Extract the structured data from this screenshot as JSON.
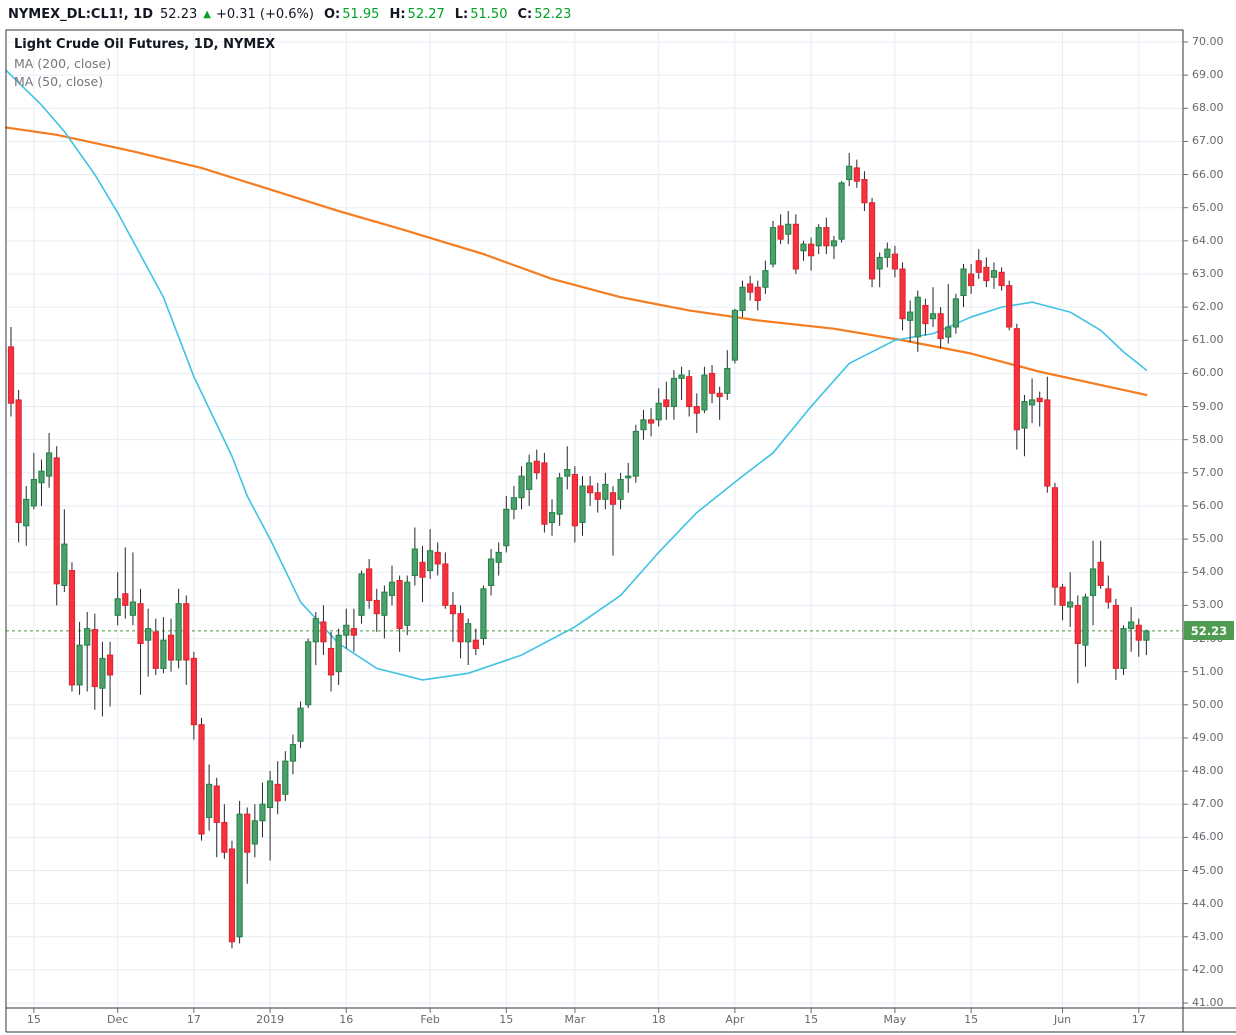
{
  "header": {
    "symbol_text": "NYMEX_DL:CL1!, 1D",
    "last_price": "52.23",
    "direction_icon": "up-triangle",
    "change_text": "+0.31 (+0.6%)",
    "open_label": "O:",
    "open": "51.95",
    "high_label": "H:",
    "high": "52.27",
    "low_label": "L:",
    "low": "51.50",
    "close_label": "C:",
    "close": "52.23"
  },
  "legend": {
    "title": "Light Crude Oil Futures, 1D, NYMEX",
    "ma200_label": "MA (200, close)",
    "ma50_label": "MA (50, close)"
  },
  "colors": {
    "up_fill": "#4f9e6d",
    "up_stroke": "#1f8243",
    "down_fill": "#f5323e",
    "down_stroke": "#dc2230",
    "wick": "#23262c",
    "ma200": "#f57c20",
    "ma50": "#40c2e5",
    "grid": "#e6edf4",
    "frame": "#33363d",
    "axis_text": "#66696f",
    "price_line": "#4e9b3d",
    "badge_bg": "#509b52",
    "badge_text": "#ffffff",
    "value_green": "#00a028"
  },
  "chart_data": {
    "type": "candlestick",
    "title": "Light Crude Oil Futures, 1D, NYMEX",
    "ylim": [
      41,
      70
    ],
    "y_min": 41,
    "y_max": 70,
    "y_step": 1,
    "grid": true,
    "price_line": 52.23,
    "price_label": "52.23",
    "x_labels": [
      [
        3,
        "15"
      ],
      [
        14,
        "Dec"
      ],
      [
        24,
        "17"
      ],
      [
        34,
        "2019"
      ],
      [
        44,
        "16"
      ],
      [
        55,
        "Feb"
      ],
      [
        65,
        "15"
      ],
      [
        74,
        "Mar"
      ],
      [
        85,
        "18"
      ],
      [
        95,
        "Apr"
      ],
      [
        105,
        "15"
      ],
      [
        116,
        "May"
      ],
      [
        126,
        "15"
      ],
      [
        138,
        "Jun"
      ],
      [
        148,
        "17"
      ]
    ],
    "candles": [
      [
        60.8,
        61.4,
        58.7,
        59.1
      ],
      [
        59.2,
        59.5,
        54.9,
        55.5
      ],
      [
        55.4,
        56.6,
        54.8,
        56.2
      ],
      [
        56.0,
        57.6,
        55.9,
        56.8
      ],
      [
        56.7,
        57.4,
        56.0,
        57.05
      ],
      [
        56.9,
        58.2,
        56.55,
        57.6
      ],
      [
        57.45,
        57.8,
        53.0,
        53.65
      ],
      [
        53.6,
        55.9,
        53.4,
        54.85
      ],
      [
        54.05,
        54.3,
        50.4,
        50.6
      ],
      [
        50.6,
        52.5,
        50.3,
        51.8
      ],
      [
        51.8,
        52.8,
        50.4,
        52.3
      ],
      [
        52.27,
        52.75,
        49.85,
        50.55
      ],
      [
        50.5,
        51.9,
        49.65,
        51.4
      ],
      [
        51.5,
        51.9,
        49.95,
        50.9
      ],
      [
        52.7,
        54.0,
        52.4,
        53.2
      ],
      [
        53.35,
        54.75,
        52.6,
        53.0
      ],
      [
        52.7,
        54.6,
        52.4,
        53.1
      ],
      [
        53.05,
        53.5,
        50.3,
        51.85
      ],
      [
        51.95,
        52.9,
        50.85,
        52.3
      ],
      [
        52.2,
        52.6,
        50.9,
        51.1
      ],
      [
        51.1,
        52.65,
        50.95,
        51.95
      ],
      [
        52.1,
        52.6,
        51.0,
        51.35
      ],
      [
        51.35,
        53.5,
        51.1,
        53.05
      ],
      [
        53.05,
        53.3,
        50.6,
        51.35
      ],
      [
        51.4,
        51.6,
        48.95,
        49.4
      ],
      [
        49.4,
        49.6,
        45.9,
        46.1
      ],
      [
        46.6,
        48.2,
        46.2,
        47.6
      ],
      [
        47.55,
        47.8,
        45.4,
        46.45
      ],
      [
        46.45,
        47.0,
        45.35,
        45.55
      ],
      [
        45.65,
        45.9,
        42.65,
        42.85
      ],
      [
        43.0,
        47.1,
        42.8,
        46.7
      ],
      [
        46.7,
        46.9,
        44.6,
        45.55
      ],
      [
        45.8,
        47.0,
        45.4,
        46.5
      ],
      [
        46.5,
        47.65,
        46.0,
        47.0
      ],
      [
        46.9,
        48.0,
        45.3,
        47.7
      ],
      [
        47.6,
        48.3,
        46.7,
        47.1
      ],
      [
        47.3,
        48.6,
        47.1,
        48.3
      ],
      [
        48.3,
        49.1,
        47.9,
        48.8
      ],
      [
        48.9,
        50.1,
        48.7,
        49.9
      ],
      [
        50.0,
        52.0,
        49.9,
        51.9
      ],
      [
        51.9,
        52.8,
        51.2,
        52.6
      ],
      [
        52.5,
        53.0,
        51.5,
        51.9
      ],
      [
        51.7,
        52.2,
        50.4,
        50.9
      ],
      [
        51.0,
        52.3,
        50.6,
        52.1
      ],
      [
        52.1,
        52.9,
        51.7,
        52.4
      ],
      [
        52.3,
        52.9,
        51.6,
        52.1
      ],
      [
        52.7,
        54.05,
        52.45,
        53.95
      ],
      [
        54.1,
        54.4,
        52.9,
        53.15
      ],
      [
        53.15,
        53.5,
        52.2,
        52.75
      ],
      [
        52.7,
        53.6,
        52.0,
        53.4
      ],
      [
        53.3,
        54.2,
        53.0,
        53.7
      ],
      [
        53.75,
        53.9,
        51.6,
        52.3
      ],
      [
        52.4,
        53.9,
        52.1,
        53.7
      ],
      [
        53.9,
        55.35,
        53.6,
        54.7
      ],
      [
        54.3,
        54.8,
        53.1,
        53.85
      ],
      [
        54.05,
        55.3,
        53.8,
        54.65
      ],
      [
        54.6,
        54.9,
        53.9,
        54.25
      ],
      [
        54.25,
        54.6,
        52.9,
        53.0
      ],
      [
        53.0,
        53.4,
        51.9,
        52.75
      ],
      [
        52.75,
        53.0,
        51.4,
        51.9
      ],
      [
        51.9,
        52.6,
        51.2,
        52.45
      ],
      [
        51.95,
        52.3,
        51.5,
        51.7
      ],
      [
        52.0,
        53.6,
        51.8,
        53.5
      ],
      [
        53.6,
        54.7,
        53.3,
        54.4
      ],
      [
        54.3,
        54.9,
        53.9,
        54.6
      ],
      [
        54.8,
        56.3,
        54.6,
        55.9
      ],
      [
        55.9,
        56.6,
        55.6,
        56.25
      ],
      [
        56.25,
        57.2,
        55.9,
        56.9
      ],
      [
        56.5,
        57.55,
        56.0,
        57.3
      ],
      [
        57.35,
        57.7,
        56.8,
        57.0
      ],
      [
        57.3,
        57.6,
        55.2,
        55.45
      ],
      [
        55.5,
        56.2,
        55.1,
        55.8
      ],
      [
        55.75,
        57.0,
        55.4,
        56.85
      ],
      [
        56.9,
        57.8,
        56.5,
        57.1
      ],
      [
        56.95,
        57.2,
        54.9,
        55.4
      ],
      [
        55.5,
        56.9,
        55.1,
        56.6
      ],
      [
        56.6,
        56.9,
        56.0,
        56.4
      ],
      [
        56.4,
        56.7,
        55.8,
        56.2
      ],
      [
        56.2,
        57.0,
        55.9,
        56.65
      ],
      [
        56.4,
        56.6,
        54.5,
        56.05
      ],
      [
        56.2,
        57.0,
        55.9,
        56.8
      ],
      [
        56.85,
        57.3,
        56.4,
        56.9
      ],
      [
        56.9,
        58.45,
        56.7,
        58.25
      ],
      [
        58.3,
        58.9,
        58.0,
        58.6
      ],
      [
        58.6,
        58.95,
        58.1,
        58.5
      ],
      [
        58.6,
        59.55,
        58.4,
        59.1
      ],
      [
        59.2,
        59.75,
        58.6,
        59.0
      ],
      [
        59.0,
        60.1,
        58.6,
        59.85
      ],
      [
        59.85,
        60.2,
        59.2,
        59.95
      ],
      [
        59.9,
        60.1,
        58.7,
        59.0
      ],
      [
        59.0,
        59.4,
        58.2,
        58.8
      ],
      [
        58.9,
        60.2,
        58.8,
        59.95
      ],
      [
        60.0,
        60.25,
        59.1,
        59.4
      ],
      [
        59.4,
        59.6,
        58.6,
        59.3
      ],
      [
        59.4,
        60.7,
        59.2,
        60.15
      ],
      [
        60.4,
        61.95,
        60.3,
        61.9
      ],
      [
        61.9,
        62.8,
        61.7,
        62.6
      ],
      [
        62.7,
        62.95,
        62.2,
        62.45
      ],
      [
        62.6,
        62.8,
        61.9,
        62.2
      ],
      [
        62.6,
        63.4,
        62.4,
        63.1
      ],
      [
        63.3,
        64.6,
        63.2,
        64.4
      ],
      [
        64.45,
        64.8,
        63.9,
        64.05
      ],
      [
        64.2,
        64.9,
        63.9,
        64.5
      ],
      [
        64.5,
        64.8,
        63.0,
        63.15
      ],
      [
        63.7,
        64.0,
        63.4,
        63.9
      ],
      [
        63.9,
        64.1,
        63.1,
        63.55
      ],
      [
        63.85,
        64.5,
        63.6,
        64.4
      ],
      [
        64.4,
        64.7,
        63.6,
        63.85
      ],
      [
        63.85,
        64.15,
        63.45,
        64.0
      ],
      [
        64.05,
        65.8,
        63.95,
        65.75
      ],
      [
        65.85,
        66.65,
        65.65,
        66.25
      ],
      [
        66.2,
        66.45,
        65.6,
        65.8
      ],
      [
        65.85,
        66.1,
        64.9,
        65.15
      ],
      [
        65.15,
        65.3,
        62.6,
        62.85
      ],
      [
        63.15,
        63.65,
        62.6,
        63.5
      ],
      [
        63.5,
        63.95,
        63.2,
        63.75
      ],
      [
        63.6,
        63.85,
        62.9,
        63.15
      ],
      [
        63.15,
        63.35,
        61.3,
        61.65
      ],
      [
        61.6,
        62.2,
        60.95,
        61.85
      ],
      [
        61.1,
        62.5,
        60.65,
        62.3
      ],
      [
        62.05,
        62.25,
        61.15,
        61.5
      ],
      [
        61.65,
        62.6,
        61.4,
        61.8
      ],
      [
        61.8,
        62.0,
        60.75,
        61.05
      ],
      [
        61.1,
        62.7,
        60.9,
        61.4
      ],
      [
        61.4,
        62.4,
        61.2,
        62.25
      ],
      [
        62.35,
        63.3,
        62.0,
        63.15
      ],
      [
        63.0,
        63.3,
        62.4,
        62.65
      ],
      [
        63.4,
        63.75,
        62.85,
        63.05
      ],
      [
        63.2,
        63.5,
        62.6,
        62.8
      ],
      [
        62.9,
        63.35,
        62.55,
        63.1
      ],
      [
        63.05,
        63.2,
        62.5,
        62.65
      ],
      [
        62.65,
        62.8,
        61.3,
        61.4
      ],
      [
        61.35,
        61.5,
        57.7,
        58.3
      ],
      [
        58.35,
        59.35,
        57.5,
        59.15
      ],
      [
        59.05,
        59.85,
        58.5,
        59.2
      ],
      [
        59.25,
        59.45,
        58.4,
        59.15
      ],
      [
        59.2,
        59.9,
        56.4,
        56.6
      ],
      [
        56.55,
        56.7,
        53.0,
        53.55
      ],
      [
        53.55,
        53.65,
        52.55,
        53.0
      ],
      [
        52.95,
        54.0,
        52.35,
        53.1
      ],
      [
        53.0,
        53.3,
        50.65,
        51.85
      ],
      [
        51.8,
        53.35,
        51.15,
        53.25
      ],
      [
        53.3,
        54.95,
        52.4,
        54.1
      ],
      [
        54.3,
        54.95,
        53.5,
        53.6
      ],
      [
        53.5,
        53.9,
        52.9,
        53.1
      ],
      [
        53.0,
        53.2,
        50.75,
        51.1
      ],
      [
        51.1,
        52.4,
        50.9,
        52.3
      ],
      [
        52.3,
        52.95,
        51.6,
        52.5
      ],
      [
        52.4,
        52.6,
        51.45,
        51.95
      ],
      [
        51.95,
        52.27,
        51.5,
        52.23
      ]
    ],
    "ma200": [
      [
        -0.65,
        67.42
      ],
      [
        0,
        67.4
      ],
      [
        6,
        67.2
      ],
      [
        16,
        66.7
      ],
      [
        25,
        66.2
      ],
      [
        34,
        65.55
      ],
      [
        43,
        64.9
      ],
      [
        52,
        64.3
      ],
      [
        62,
        63.6
      ],
      [
        71,
        62.85
      ],
      [
        80,
        62.3
      ],
      [
        89,
        61.9
      ],
      [
        98,
        61.6
      ],
      [
        108,
        61.35
      ],
      [
        117,
        61.0
      ],
      [
        126,
        60.6
      ],
      [
        135,
        60.05
      ],
      [
        144,
        59.6
      ],
      [
        149,
        59.35
      ]
    ],
    "ma50": [
      [
        -0.65,
        69.15
      ],
      [
        0,
        69.0
      ],
      [
        4,
        68.1
      ],
      [
        7,
        67.3
      ],
      [
        11,
        66.0
      ],
      [
        14,
        64.85
      ],
      [
        20,
        62.3
      ],
      [
        24,
        59.9
      ],
      [
        29,
        57.5
      ],
      [
        31,
        56.3
      ],
      [
        34,
        55.0
      ],
      [
        38,
        53.1
      ],
      [
        43,
        51.85
      ],
      [
        48,
        51.1
      ],
      [
        54,
        50.75
      ],
      [
        60,
        50.95
      ],
      [
        67,
        51.5
      ],
      [
        74,
        52.35
      ],
      [
        80,
        53.3
      ],
      [
        85,
        54.6
      ],
      [
        90,
        55.8
      ],
      [
        96,
        56.9
      ],
      [
        100,
        57.6
      ],
      [
        105,
        59.0
      ],
      [
        110,
        60.3
      ],
      [
        116,
        61.0
      ],
      [
        121,
        61.2
      ],
      [
        126,
        61.7
      ],
      [
        130,
        62.0
      ],
      [
        134,
        62.15
      ],
      [
        139,
        61.85
      ],
      [
        143,
        61.3
      ],
      [
        146,
        60.65
      ],
      [
        149,
        60.1
      ]
    ]
  }
}
